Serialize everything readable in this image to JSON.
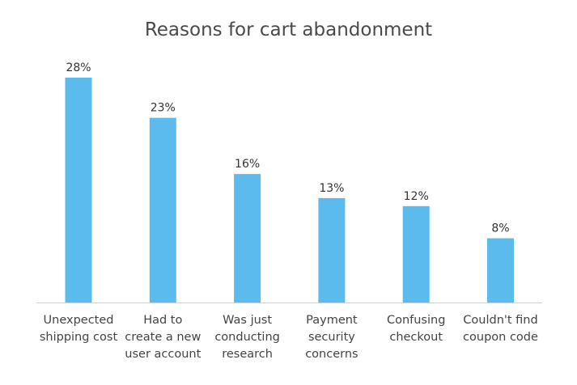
{
  "chart_data": {
    "type": "bar",
    "title": "Reasons for cart abandonment",
    "categories": [
      [
        "Unexpected",
        "shipping cost"
      ],
      [
        "Had to",
        "create a new",
        "user account"
      ],
      [
        "Was just",
        "conducting",
        "research"
      ],
      [
        "Payment",
        "security",
        "concerns"
      ],
      [
        "Confusing",
        "checkout"
      ],
      [
        "Couldn't find",
        "coupon code"
      ]
    ],
    "values": [
      28,
      23,
      16,
      13,
      12,
      8
    ],
    "value_labels": [
      "28%",
      "23%",
      "16%",
      "13%",
      "12%",
      "8%"
    ],
    "unit": "%",
    "ylim": [
      0,
      28
    ],
    "grid": false,
    "bar_color": "#5bbbec",
    "axis_color": "#d0d0d0"
  }
}
